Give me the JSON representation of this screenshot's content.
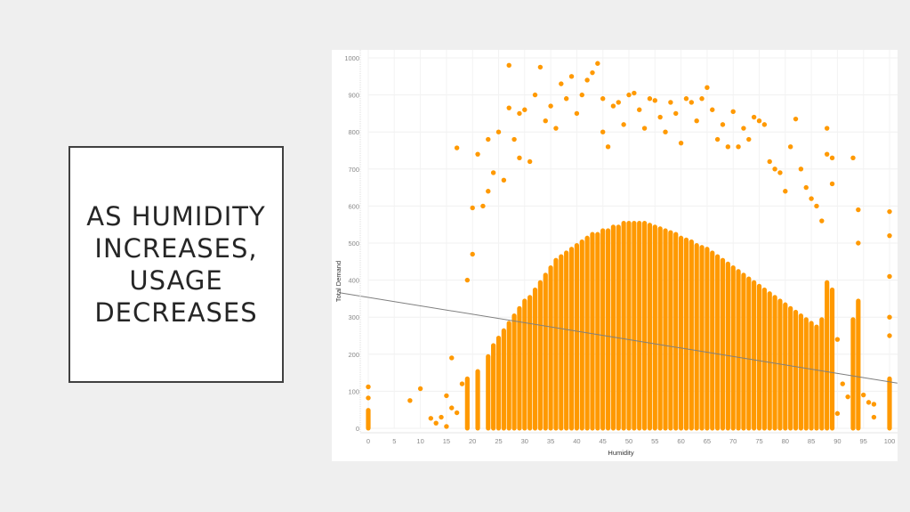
{
  "slide": {
    "title": "AS HUMIDITY INCREASES, USAGE DECREASES"
  },
  "chart_data": {
    "type": "scatter",
    "title": "",
    "xlabel": "Humidity",
    "ylabel": "Total Demand",
    "xlim": [
      0,
      100
    ],
    "ylim": [
      0,
      1000
    ],
    "x_ticks": [
      0,
      5,
      10,
      15,
      20,
      25,
      30,
      35,
      40,
      45,
      50,
      55,
      60,
      65,
      70,
      75,
      80,
      85,
      90,
      95,
      100
    ],
    "y_ticks": [
      0,
      100,
      200,
      300,
      400,
      500,
      600,
      700,
      800,
      900,
      1000
    ],
    "grid": true,
    "point_color": "#ff9900",
    "trend_line": {
      "color": "#7f7f7f",
      "start": [
        -5.5,
        366
      ],
      "end": [
        101.5,
        122
      ]
    },
    "dense_columns": {
      "humidity": [
        0,
        19,
        21,
        23,
        24,
        25,
        26,
        27,
        28,
        29,
        30,
        31,
        32,
        33,
        34,
        35,
        36,
        37,
        38,
        39,
        40,
        41,
        42,
        43,
        44,
        45,
        46,
        47,
        48,
        49,
        50,
        51,
        52,
        53,
        54,
        55,
        56,
        57,
        58,
        59,
        60,
        61,
        62,
        63,
        64,
        65,
        66,
        67,
        68,
        69,
        70,
        71,
        72,
        73,
        74,
        75,
        76,
        77,
        78,
        79,
        80,
        81,
        82,
        83,
        84,
        85,
        86,
        87,
        88,
        89,
        93,
        94,
        100
      ],
      "top": [
        55,
        140,
        160,
        200,
        230,
        250,
        270,
        290,
        310,
        330,
        350,
        360,
        380,
        400,
        420,
        440,
        460,
        470,
        480,
        490,
        500,
        510,
        520,
        530,
        530,
        540,
        540,
        550,
        550,
        560,
        560,
        560,
        560,
        560,
        555,
        550,
        545,
        540,
        535,
        530,
        520,
        515,
        510,
        500,
        495,
        490,
        480,
        470,
        460,
        450,
        440,
        430,
        420,
        410,
        400,
        390,
        380,
        370,
        360,
        350,
        340,
        330,
        320,
        310,
        300,
        290,
        280,
        300,
        400,
        380,
        300,
        350,
        140
      ]
    },
    "points": [
      [
        0,
        112
      ],
      [
        0,
        82
      ],
      [
        8,
        75
      ],
      [
        10,
        107
      ],
      [
        12,
        27
      ],
      [
        13,
        14
      ],
      [
        14,
        30
      ],
      [
        15,
        5
      ],
      [
        15,
        88
      ],
      [
        16,
        55
      ],
      [
        16,
        190
      ],
      [
        17,
        42
      ],
      [
        17,
        757
      ],
      [
        18,
        120
      ],
      [
        19,
        400
      ],
      [
        20,
        470
      ],
      [
        20,
        595
      ],
      [
        21,
        740
      ],
      [
        22,
        600
      ],
      [
        23,
        640
      ],
      [
        23,
        780
      ],
      [
        24,
        690
      ],
      [
        25,
        800
      ],
      [
        26,
        670
      ],
      [
        27,
        865
      ],
      [
        27,
        980
      ],
      [
        28,
        780
      ],
      [
        29,
        730
      ],
      [
        29,
        850
      ],
      [
        30,
        860
      ],
      [
        31,
        720
      ],
      [
        32,
        900
      ],
      [
        33,
        975
      ],
      [
        34,
        830
      ],
      [
        35,
        870
      ],
      [
        36,
        810
      ],
      [
        37,
        930
      ],
      [
        38,
        890
      ],
      [
        39,
        950
      ],
      [
        40,
        850
      ],
      [
        41,
        900
      ],
      [
        42,
        940
      ],
      [
        43,
        960
      ],
      [
        44,
        985
      ],
      [
        45,
        800
      ],
      [
        45,
        890
      ],
      [
        46,
        760
      ],
      [
        47,
        870
      ],
      [
        48,
        880
      ],
      [
        49,
        820
      ],
      [
        50,
        900
      ],
      [
        51,
        905
      ],
      [
        52,
        860
      ],
      [
        53,
        810
      ],
      [
        54,
        890
      ],
      [
        55,
        885
      ],
      [
        56,
        840
      ],
      [
        57,
        800
      ],
      [
        58,
        880
      ],
      [
        59,
        850
      ],
      [
        60,
        770
      ],
      [
        61,
        890
      ],
      [
        62,
        880
      ],
      [
        63,
        830
      ],
      [
        64,
        890
      ],
      [
        65,
        920
      ],
      [
        66,
        860
      ],
      [
        67,
        780
      ],
      [
        68,
        820
      ],
      [
        69,
        760
      ],
      [
        70,
        855
      ],
      [
        71,
        760
      ],
      [
        72,
        810
      ],
      [
        73,
        780
      ],
      [
        74,
        840
      ],
      [
        75,
        830
      ],
      [
        76,
        820
      ],
      [
        77,
        720
      ],
      [
        78,
        700
      ],
      [
        79,
        690
      ],
      [
        80,
        640
      ],
      [
        81,
        760
      ],
      [
        82,
        835
      ],
      [
        83,
        700
      ],
      [
        84,
        650
      ],
      [
        85,
        620
      ],
      [
        86,
        600
      ],
      [
        87,
        560
      ],
      [
        88,
        810
      ],
      [
        88,
        740
      ],
      [
        89,
        730
      ],
      [
        89,
        660
      ],
      [
        90,
        240
      ],
      [
        91,
        120
      ],
      [
        92,
        85
      ],
      [
        93,
        730
      ],
      [
        94,
        590
      ],
      [
        94,
        500
      ],
      [
        95,
        90
      ],
      [
        96,
        70
      ],
      [
        97,
        65
      ],
      [
        100,
        585
      ],
      [
        100,
        520
      ],
      [
        100,
        410
      ],
      [
        100,
        300
      ],
      [
        100,
        250
      ],
      [
        97,
        30
      ],
      [
        90,
        40
      ]
    ]
  }
}
